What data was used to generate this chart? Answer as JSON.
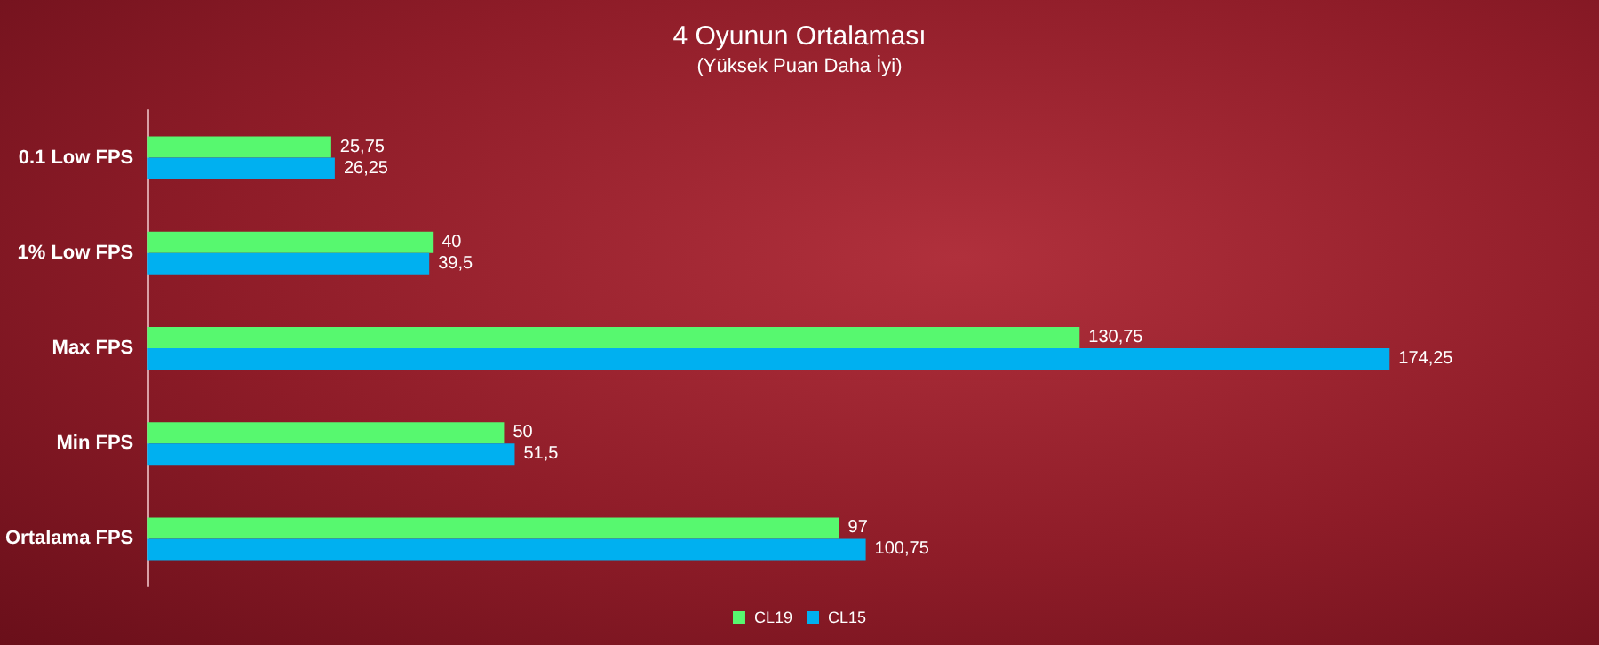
{
  "chart_data": {
    "type": "bar",
    "orientation": "horizontal",
    "title": "4 Oyunun Ortalaması",
    "subtitle": "(Yüksek Puan Daha İyi)",
    "categories": [
      "0.1 Low FPS",
      "1% Low FPS",
      "Max FPS",
      "Min FPS",
      "Ortalama FPS"
    ],
    "series": [
      {
        "name": "CL19",
        "color": "#57f86f",
        "values": [
          25.75,
          40,
          130.75,
          50,
          97
        ],
        "value_labels": [
          "25,75",
          "40",
          "130,75",
          "50",
          "97"
        ]
      },
      {
        "name": "CL15",
        "color": "#00b0f0",
        "values": [
          26.25,
          39.5,
          174.25,
          51.5,
          100.75
        ],
        "value_labels": [
          "26,25",
          "39,5",
          "174,25",
          "51,5",
          "100,75"
        ]
      }
    ],
    "legend": "bottom"
  }
}
